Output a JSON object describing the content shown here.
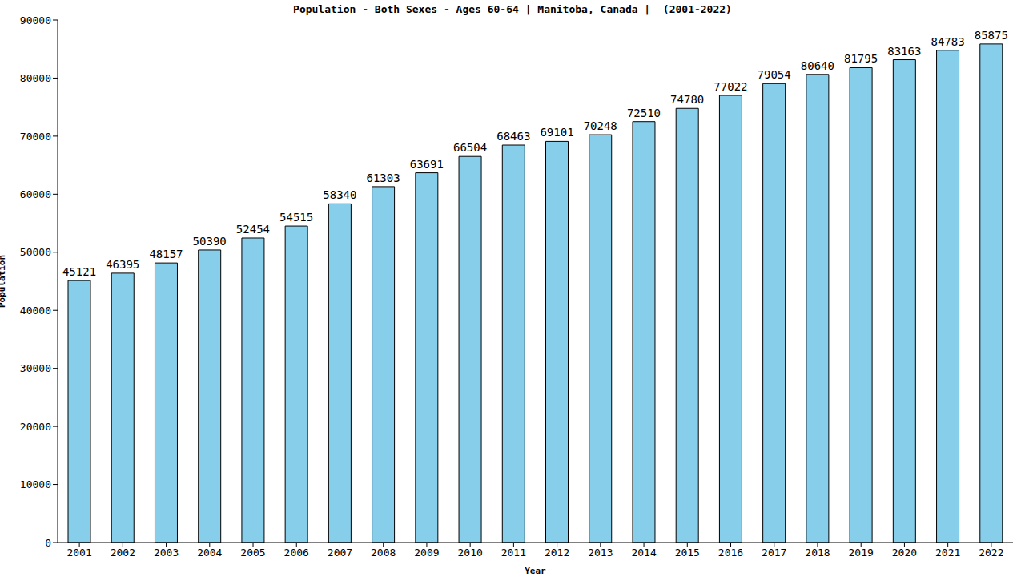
{
  "chart_data": {
    "type": "bar",
    "title": "Population - Both Sexes - Ages 60-64 | Manitoba, Canada |  (2001-2022)",
    "x_label": "Year",
    "y_label": "Population",
    "categories": [
      "2001",
      "2002",
      "2003",
      "2004",
      "2005",
      "2006",
      "2007",
      "2008",
      "2009",
      "2010",
      "2011",
      "2012",
      "2013",
      "2014",
      "2015",
      "2016",
      "2017",
      "2018",
      "2019",
      "2020",
      "2021",
      "2022"
    ],
    "values": [
      45121,
      46395,
      48157,
      50390,
      52454,
      54515,
      58340,
      61303,
      63691,
      66504,
      68463,
      69101,
      70248,
      72510,
      74780,
      77022,
      79054,
      80640,
      81795,
      83163,
      84783,
      85875
    ],
    "color": "#87ceeb",
    "ylim": [
      0,
      90000
    ],
    "yticks": [
      0,
      10000,
      20000,
      30000,
      40000,
      50000,
      60000,
      70000,
      80000,
      90000
    ],
    "grid": false,
    "data_labels": true
  }
}
